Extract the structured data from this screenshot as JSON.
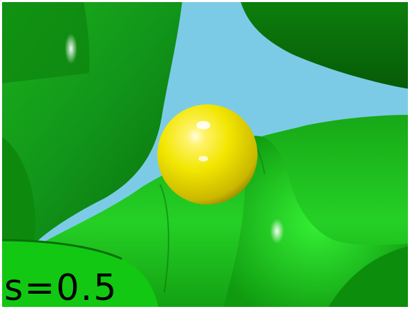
{
  "label": "s=0.5",
  "colors": {
    "background": "#7ccbe6",
    "surface_dark": "#0a7a0a",
    "surface_mid": "#1aa81a",
    "surface_light": "#2fe02f",
    "sphere": "#f2e600",
    "sphere_shadow": "#b09a00",
    "border": "#ffffff"
  },
  "scene": {
    "objects": [
      "green-isosurface",
      "yellow-sphere"
    ]
  }
}
